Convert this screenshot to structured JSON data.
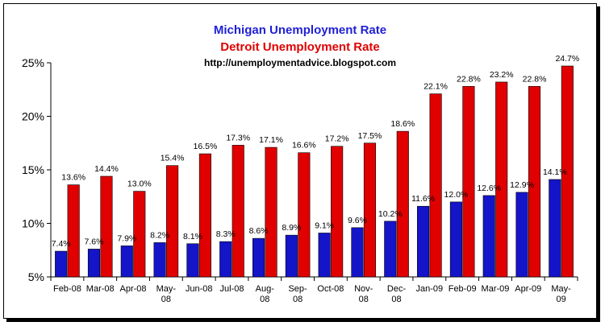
{
  "chart_data": {
    "type": "bar",
    "title_lines": [
      {
        "text": "Michigan Unemployment Rate",
        "color": "#1f1fd6"
      },
      {
        "text": "Detroit Unemployment Rate",
        "color": "#e00000"
      }
    ],
    "subtitle": "http://unemploymentadvice.blogspot.com",
    "categories": [
      [
        "Feb-08"
      ],
      [
        "Mar-08"
      ],
      [
        "Apr-08"
      ],
      [
        "May-",
        "08"
      ],
      [
        "Jun-08"
      ],
      [
        "Jul-08"
      ],
      [
        "Aug-",
        "08"
      ],
      [
        "Sep-",
        "08"
      ],
      [
        "Oct-08"
      ],
      [
        "Nov-",
        "08"
      ],
      [
        "Dec-",
        "08"
      ],
      [
        "Jan-09"
      ],
      [
        "Feb-09"
      ],
      [
        "Mar-09"
      ],
      [
        "Apr-09"
      ],
      [
        "May-",
        "09"
      ]
    ],
    "series": [
      {
        "name": "Michigan",
        "color": "#1414c8",
        "values": [
          7.4,
          7.6,
          7.9,
          8.2,
          8.1,
          8.3,
          8.6,
          8.9,
          9.1,
          9.6,
          10.2,
          11.6,
          12.0,
          12.6,
          12.9,
          14.1
        ],
        "labels": [
          "7.4%",
          "7.6%",
          "7.9%",
          "8.2%",
          "8.1%",
          "8.3%",
          "8.6%",
          "8.9%",
          "9.1%",
          "9.6%",
          "10.2%",
          "11.6%",
          "12.0%",
          "12.6%",
          "12.9%",
          "14.1%"
        ]
      },
      {
        "name": "Detroit",
        "color": "#e00000",
        "values": [
          13.6,
          14.4,
          13.0,
          15.4,
          16.5,
          17.3,
          17.1,
          16.6,
          17.2,
          17.5,
          18.6,
          22.1,
          22.8,
          23.2,
          22.8,
          24.7
        ],
        "labels": [
          "13.6%",
          "14.4%",
          "13.0%",
          "15.4%",
          "16.5%",
          "17.3%",
          "17.1%",
          "16.6%",
          "17.2%",
          "17.5%",
          "18.6%",
          "22.1%",
          "22.8%",
          "23.2%",
          "22.8%",
          "24.7%"
        ]
      }
    ],
    "y_ticks": [
      {
        "value": 5,
        "label": "5%"
      },
      {
        "value": 10,
        "label": "10%"
      },
      {
        "value": 15,
        "label": "15%"
      },
      {
        "value": 20,
        "label": "20%"
      },
      {
        "value": 25,
        "label": "25%"
      }
    ],
    "ylim": [
      5,
      25
    ],
    "xlabel": "",
    "ylabel": "",
    "grid": false,
    "legend": "none"
  }
}
